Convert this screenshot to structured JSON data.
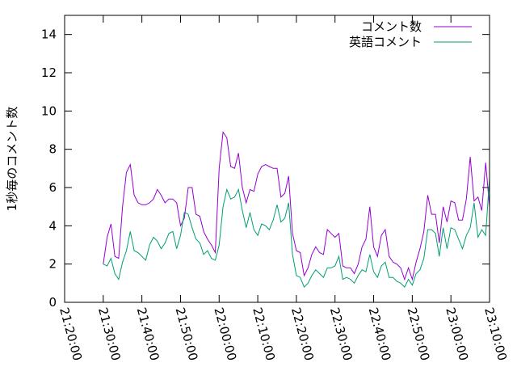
{
  "chart_data": {
    "type": "line",
    "title": "",
    "xlabel": "",
    "ylabel": "1秒毎のコメント数",
    "ylim": [
      0,
      15
    ],
    "xlim": [
      "21:20:00",
      "23:10:00"
    ],
    "y_ticks": [
      "0",
      "2",
      "4",
      "6",
      "8",
      "10",
      "12",
      "14"
    ],
    "x_ticks": [
      "21:20:00",
      "21:30:00",
      "21:40:00",
      "21:50:00",
      "22:00:00",
      "22:10:00",
      "22:20:00",
      "22:30:00",
      "22:40:00",
      "22:50:00",
      "23:00:00",
      "23:10:00"
    ],
    "grid": false,
    "legend_position": "top-right",
    "series": [
      {
        "name": "コメント数",
        "color": "#9400d3",
        "points": [
          [
            "21:30:00",
            2.0
          ],
          [
            "21:31:00",
            3.4
          ],
          [
            "21:32:00",
            4.1
          ],
          [
            "21:33:00",
            2.4
          ],
          [
            "21:34:00",
            2.3
          ],
          [
            "21:35:00",
            5.0
          ],
          [
            "21:36:00",
            6.8
          ],
          [
            "21:37:00",
            7.2
          ],
          [
            "21:38:00",
            5.6
          ],
          [
            "21:39:00",
            5.2
          ],
          [
            "21:40:00",
            5.1
          ],
          [
            "21:41:00",
            5.1
          ],
          [
            "21:42:00",
            5.2
          ],
          [
            "21:43:00",
            5.4
          ],
          [
            "21:44:00",
            5.9
          ],
          [
            "21:45:00",
            5.6
          ],
          [
            "21:46:00",
            5.2
          ],
          [
            "21:47:00",
            5.4
          ],
          [
            "21:48:00",
            5.4
          ],
          [
            "21:49:00",
            5.2
          ],
          [
            "21:50:00",
            4.0
          ],
          [
            "21:51:00",
            4.4
          ],
          [
            "21:52:00",
            6.0
          ],
          [
            "21:53:00",
            6.0
          ],
          [
            "21:54:00",
            4.6
          ],
          [
            "21:55:00",
            4.5
          ],
          [
            "21:56:00",
            3.7
          ],
          [
            "21:57:00",
            3.3
          ],
          [
            "21:58:00",
            3.0
          ],
          [
            "21:59:00",
            2.6
          ],
          [
            "22:00:00",
            7.0
          ],
          [
            "22:01:00",
            8.9
          ],
          [
            "22:02:00",
            8.6
          ],
          [
            "22:03:00",
            7.1
          ],
          [
            "22:04:00",
            7.0
          ],
          [
            "22:05:00",
            7.8
          ],
          [
            "22:06:00",
            6.0
          ],
          [
            "22:07:00",
            5.2
          ],
          [
            "22:08:00",
            5.9
          ],
          [
            "22:09:00",
            5.8
          ],
          [
            "22:10:00",
            6.7
          ],
          [
            "22:11:00",
            7.1
          ],
          [
            "22:12:00",
            7.2
          ],
          [
            "22:13:00",
            7.1
          ],
          [
            "22:14:00",
            7.0
          ],
          [
            "22:15:00",
            7.0
          ],
          [
            "22:16:00",
            5.5
          ],
          [
            "22:17:00",
            5.7
          ],
          [
            "22:18:00",
            6.6
          ],
          [
            "22:19:00",
            3.6
          ],
          [
            "22:20:00",
            2.7
          ],
          [
            "22:21:00",
            2.6
          ],
          [
            "22:22:00",
            1.4
          ],
          [
            "22:23:00",
            1.8
          ],
          [
            "22:24:00",
            2.5
          ],
          [
            "22:25:00",
            2.9
          ],
          [
            "22:26:00",
            2.6
          ],
          [
            "22:27:00",
            2.5
          ],
          [
            "22:28:00",
            3.8
          ],
          [
            "22:29:00",
            3.6
          ],
          [
            "22:30:00",
            3.4
          ],
          [
            "22:31:00",
            3.6
          ],
          [
            "22:32:00",
            1.9
          ],
          [
            "22:33:00",
            1.8
          ],
          [
            "22:34:00",
            1.8
          ],
          [
            "22:35:00",
            1.5
          ],
          [
            "22:36:00",
            2.0
          ],
          [
            "22:37:00",
            2.9
          ],
          [
            "22:38:00",
            3.3
          ],
          [
            "22:39:00",
            5.0
          ],
          [
            "22:40:00",
            2.9
          ],
          [
            "22:41:00",
            2.4
          ],
          [
            "22:42:00",
            3.5
          ],
          [
            "22:43:00",
            3.8
          ],
          [
            "22:44:00",
            2.4
          ],
          [
            "22:45:00",
            2.1
          ],
          [
            "22:46:00",
            2.0
          ],
          [
            "22:47:00",
            1.8
          ],
          [
            "22:48:00",
            1.2
          ],
          [
            "22:49:00",
            1.8
          ],
          [
            "22:50:00",
            1.2
          ],
          [
            "22:51:00",
            2.1
          ],
          [
            "22:52:00",
            2.8
          ],
          [
            "22:53:00",
            3.7
          ],
          [
            "22:54:00",
            5.6
          ],
          [
            "22:55:00",
            4.6
          ],
          [
            "22:56:00",
            4.6
          ],
          [
            "22:57:00",
            3.1
          ],
          [
            "22:58:00",
            5.0
          ],
          [
            "22:59:00",
            4.2
          ],
          [
            "23:00:00",
            5.3
          ],
          [
            "23:01:00",
            5.2
          ],
          [
            "23:02:00",
            4.3
          ],
          [
            "23:03:00",
            4.3
          ],
          [
            "23:04:00",
            5.4
          ],
          [
            "23:05:00",
            7.6
          ],
          [
            "23:06:00",
            5.3
          ],
          [
            "23:07:00",
            5.5
          ],
          [
            "23:08:00",
            4.8
          ],
          [
            "23:09:00",
            7.3
          ],
          [
            "23:10:00",
            5.0
          ]
        ]
      },
      {
        "name": "英語コメント",
        "color": "#009e73",
        "points": [
          [
            "21:30:00",
            2.0
          ],
          [
            "21:31:00",
            1.9
          ],
          [
            "21:32:00",
            2.3
          ],
          [
            "21:33:00",
            1.5
          ],
          [
            "21:34:00",
            1.2
          ],
          [
            "21:35:00",
            2.1
          ],
          [
            "21:36:00",
            2.7
          ],
          [
            "21:37:00",
            3.7
          ],
          [
            "21:38:00",
            2.7
          ],
          [
            "21:39:00",
            2.6
          ],
          [
            "21:40:00",
            2.4
          ],
          [
            "21:41:00",
            2.2
          ],
          [
            "21:42:00",
            3.0
          ],
          [
            "21:43:00",
            3.4
          ],
          [
            "21:44:00",
            3.2
          ],
          [
            "21:45:00",
            2.8
          ],
          [
            "21:46:00",
            3.1
          ],
          [
            "21:47:00",
            3.6
          ],
          [
            "21:48:00",
            3.7
          ],
          [
            "21:49:00",
            2.8
          ],
          [
            "21:50:00",
            3.5
          ],
          [
            "21:51:00",
            4.7
          ],
          [
            "21:52:00",
            4.6
          ],
          [
            "21:53:00",
            3.9
          ],
          [
            "21:54:00",
            3.3
          ],
          [
            "21:55:00",
            3.1
          ],
          [
            "21:56:00",
            2.5
          ],
          [
            "21:57:00",
            2.7
          ],
          [
            "21:58:00",
            2.3
          ],
          [
            "21:59:00",
            2.2
          ],
          [
            "22:00:00",
            3.0
          ],
          [
            "22:01:00",
            5.0
          ],
          [
            "22:02:00",
            5.9
          ],
          [
            "22:03:00",
            5.4
          ],
          [
            "22:04:00",
            5.5
          ],
          [
            "22:05:00",
            5.9
          ],
          [
            "22:06:00",
            4.8
          ],
          [
            "22:07:00",
            3.9
          ],
          [
            "22:08:00",
            4.7
          ],
          [
            "22:09:00",
            3.8
          ],
          [
            "22:10:00",
            3.5
          ],
          [
            "22:11:00",
            4.1
          ],
          [
            "22:12:00",
            4.0
          ],
          [
            "22:13:00",
            3.8
          ],
          [
            "22:14:00",
            4.3
          ],
          [
            "22:15:00",
            5.1
          ],
          [
            "22:16:00",
            4.2
          ],
          [
            "22:17:00",
            4.4
          ],
          [
            "22:18:00",
            5.2
          ],
          [
            "22:19:00",
            2.5
          ],
          [
            "22:20:00",
            1.4
          ],
          [
            "22:21:00",
            1.3
          ],
          [
            "22:22:00",
            0.8
          ],
          [
            "22:23:00",
            1.0
          ],
          [
            "22:24:00",
            1.4
          ],
          [
            "22:25:00",
            1.7
          ],
          [
            "22:26:00",
            1.5
          ],
          [
            "22:27:00",
            1.3
          ],
          [
            "22:28:00",
            1.8
          ],
          [
            "22:29:00",
            1.8
          ],
          [
            "22:30:00",
            1.9
          ],
          [
            "22:31:00",
            2.4
          ],
          [
            "22:32:00",
            1.2
          ],
          [
            "22:33:00",
            1.3
          ],
          [
            "22:34:00",
            1.2
          ],
          [
            "22:35:00",
            1.0
          ],
          [
            "22:36:00",
            1.4
          ],
          [
            "22:37:00",
            1.7
          ],
          [
            "22:38:00",
            1.6
          ],
          [
            "22:39:00",
            2.5
          ],
          [
            "22:40:00",
            1.6
          ],
          [
            "22:41:00",
            1.3
          ],
          [
            "22:42:00",
            1.9
          ],
          [
            "22:43:00",
            2.1
          ],
          [
            "22:44:00",
            1.3
          ],
          [
            "22:45:00",
            1.3
          ],
          [
            "22:46:00",
            1.1
          ],
          [
            "22:47:00",
            1.0
          ],
          [
            "22:48:00",
            0.8
          ],
          [
            "22:49:00",
            1.2
          ],
          [
            "22:50:00",
            0.9
          ],
          [
            "22:51:00",
            1.5
          ],
          [
            "22:52:00",
            1.7
          ],
          [
            "22:53:00",
            2.3
          ],
          [
            "22:54:00",
            3.8
          ],
          [
            "22:55:00",
            3.8
          ],
          [
            "22:56:00",
            3.6
          ],
          [
            "22:57:00",
            2.4
          ],
          [
            "22:58:00",
            3.9
          ],
          [
            "22:59:00",
            2.8
          ],
          [
            "23:00:00",
            3.9
          ],
          [
            "23:01:00",
            3.8
          ],
          [
            "23:02:00",
            3.3
          ],
          [
            "23:03:00",
            2.8
          ],
          [
            "23:04:00",
            3.5
          ],
          [
            "23:05:00",
            3.9
          ],
          [
            "23:06:00",
            5.2
          ],
          [
            "23:07:00",
            3.4
          ],
          [
            "23:08:00",
            3.8
          ],
          [
            "23:09:00",
            3.5
          ],
          [
            "23:10:00",
            6.5
          ]
        ]
      }
    ]
  }
}
